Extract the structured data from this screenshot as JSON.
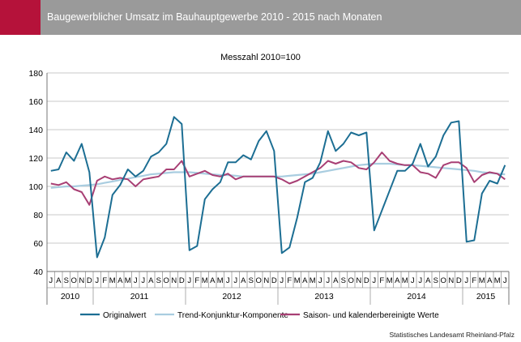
{
  "header": {
    "title": "Baugewerblicher Umsatz im Bauhauptgewerbe 2010 - 2015 nach Monaten"
  },
  "footer": {
    "source": "Statistisches Landesamt Rheinland-Pfalz"
  },
  "colors": {
    "header_accent": "#b5123a",
    "header_bar": "#9a9a9a",
    "original": "#1c6e93",
    "trend": "#a9cde0",
    "seasonal": "#a83f74",
    "grid": "#b8b8b8"
  },
  "chart_data": {
    "type": "line",
    "subtitle": "Messzahl 2010=100",
    "ylim": [
      40,
      180
    ],
    "yticks": [
      40,
      60,
      80,
      100,
      120,
      140,
      160,
      180
    ],
    "grid": "horizontal",
    "legend_position": "bottom",
    "months": [
      "J",
      "A",
      "S",
      "O",
      "N",
      "D",
      "J",
      "F",
      "M",
      "A",
      "M",
      "J",
      "J",
      "A",
      "S",
      "O",
      "N",
      "D",
      "J",
      "F",
      "M",
      "A",
      "M",
      "J",
      "J",
      "A",
      "S",
      "O",
      "N",
      "D",
      "J",
      "F",
      "M",
      "A",
      "M",
      "J",
      "J",
      "A",
      "S",
      "O",
      "N",
      "D",
      "J",
      "F",
      "M",
      "A",
      "M",
      "J",
      "J",
      "A",
      "S",
      "O",
      "N",
      "D",
      "J",
      "F",
      "M",
      "A",
      "M",
      "J"
    ],
    "years": [
      {
        "label": "2010",
        "start": 0,
        "end": 6
      },
      {
        "label": "2011",
        "start": 6,
        "end": 18
      },
      {
        "label": "2012",
        "start": 18,
        "end": 30
      },
      {
        "label": "2013",
        "start": 30,
        "end": 42
      },
      {
        "label": "2014",
        "start": 42,
        "end": 54
      },
      {
        "label": "2015",
        "start": 54,
        "end": 60
      }
    ],
    "series": [
      {
        "name": "Originalwert",
        "color": "#1c6e93",
        "values": [
          111,
          112,
          124,
          118,
          130,
          110,
          50,
          64,
          94,
          101,
          112,
          107,
          111,
          121,
          124,
          130,
          149,
          144,
          55,
          58,
          91,
          98,
          103,
          117,
          117,
          122,
          119,
          132,
          139,
          125,
          53,
          57,
          78,
          103,
          106,
          117,
          139,
          125,
          130,
          138,
          136,
          138,
          69,
          83,
          97,
          111,
          111,
          116,
          130,
          114,
          121,
          136,
          145,
          146,
          61,
          62,
          95,
          104,
          102,
          115
        ]
      },
      {
        "name": "Trend-Konjunktur-Komponente",
        "color": "#a9cde0",
        "values": [
          99,
          99.5,
          100,
          100,
          100.5,
          101,
          101.5,
          102.5,
          103.5,
          104.5,
          105.5,
          106.5,
          107.5,
          108.5,
          109,
          109.5,
          110,
          110,
          110,
          109.5,
          109,
          108.5,
          108,
          108,
          107.5,
          107,
          107,
          107,
          107,
          107,
          107,
          107.5,
          108,
          108.5,
          109,
          110,
          111,
          112,
          113,
          114,
          115,
          115.5,
          116,
          116,
          116,
          115.5,
          115,
          115,
          114.5,
          114,
          113.5,
          113,
          112.5,
          112,
          111.5,
          111,
          110,
          109.5,
          109,
          108.5
        ]
      },
      {
        "name": "Saison- und kalenderbereinigte Werte",
        "color": "#a83f74",
        "values": [
          102,
          101,
          103,
          98,
          96,
          87,
          104,
          107,
          105,
          106,
          105,
          100,
          105,
          106,
          107,
          112,
          112,
          118,
          107,
          109,
          111,
          108,
          107,
          109,
          105,
          107,
          107,
          107,
          107,
          107,
          105,
          102,
          104,
          107,
          110,
          113,
          118,
          116,
          118,
          117,
          113,
          112,
          117,
          124,
          118,
          116,
          115,
          115,
          110,
          109,
          106,
          115,
          117,
          117,
          113,
          103,
          108,
          110,
          109,
          105
        ]
      }
    ]
  }
}
